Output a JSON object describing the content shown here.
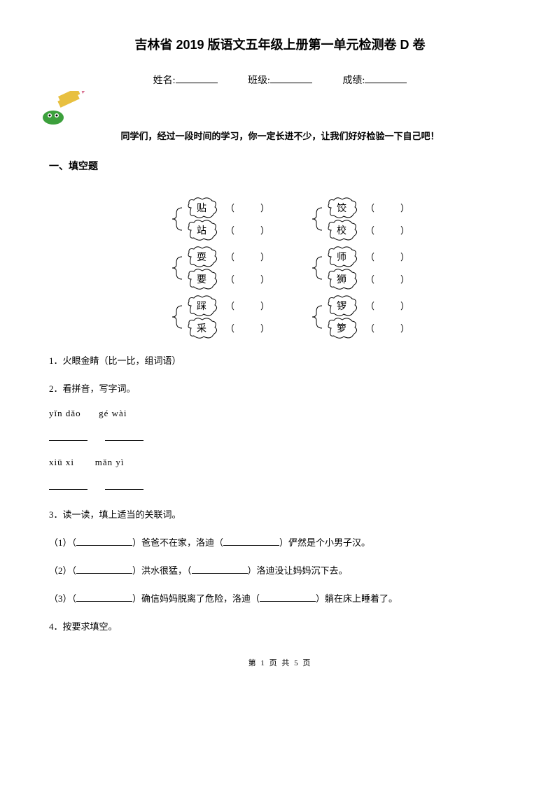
{
  "title": "吉林省 2019 版语文五年级上册第一单元检测卷 D 卷",
  "header": {
    "name_label": "姓名:",
    "class_label": "班级:",
    "score_label": "成绩:"
  },
  "intro": "同学们，经过一段时间的学习，你一定长进不少，让我们好好检验一下自己吧！",
  "section1_heading": "一、填空题",
  "clouds": {
    "pairs": [
      [
        [
          "贴",
          "站"
        ],
        [
          "饺",
          "校"
        ]
      ],
      [
        [
          "耍",
          "要"
        ],
        [
          "师",
          "狮"
        ]
      ],
      [
        [
          "踩",
          "采"
        ],
        [
          "锣",
          "箩"
        ]
      ]
    ],
    "paren_l": "（",
    "paren_r": "）"
  },
  "q1": "1．火眼金睛（比一比，组词语）",
  "q2": "2．看拼音，写字词。",
  "pinyin": {
    "row1a": "yǐn dǎo",
    "row1b": "gé wài",
    "row2a": "xiū xi",
    "row2b": "mǎn yì"
  },
  "q3": {
    "title": "3．读一读，填上适当的关联词。",
    "item1a": "（1）（",
    "item1b": "）爸爸不在家，洛迪（",
    "item1c": "）俨然是个小男子汉。",
    "item2a": "（2）（",
    "item2b": "）洪水很猛，（",
    "item2c": "）洛迪没让妈妈沉下去。",
    "item3a": "（3）（",
    "item3b": "）确信妈妈脱离了危险，洛迪（",
    "item3c": "）躺在床上睡着了。"
  },
  "q4": "4．按要求填空。",
  "footer": "第 1 页 共 5 页",
  "colors": {
    "text": "#000000",
    "background": "#ffffff",
    "cloud_stroke": "#000000",
    "pencil_green": "#3ca03c",
    "pencil_yellow": "#e8c040",
    "pencil_pink": "#d87090"
  }
}
